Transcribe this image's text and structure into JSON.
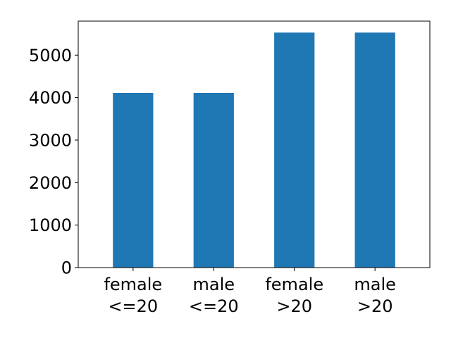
{
  "chart_data": {
    "type": "bar",
    "categories": [
      [
        "female",
        "<=20"
      ],
      [
        "male",
        "<=20"
      ],
      [
        "female",
        ">20"
      ],
      [
        "male",
        ">20"
      ]
    ],
    "values": [
      4110,
      4110,
      5530,
      5530
    ],
    "ylim": [
      0,
      5800
    ],
    "yticks": [
      0,
      1000,
      2000,
      3000,
      4000,
      5000
    ],
    "grid": false,
    "legend": "none",
    "title": "",
    "xlabel": "",
    "ylabel": "",
    "bar_color": "#1f77b4"
  }
}
